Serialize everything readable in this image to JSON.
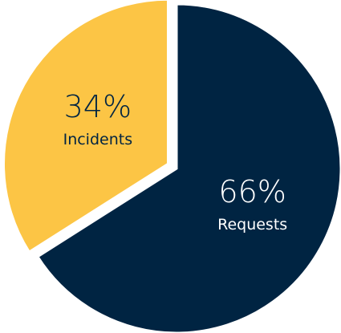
{
  "chart_data": {
    "type": "pie",
    "title": "",
    "slices": [
      {
        "label": "Requests",
        "percent_label": "66%",
        "value": 66,
        "color": "#002442",
        "text_color": "#ffffff",
        "exploded": false
      },
      {
        "label": "Incidents",
        "percent_label": "34%",
        "value": 34,
        "color": "#fcc545",
        "text_color": "#002442",
        "exploded": true
      }
    ],
    "start": "12 o'clock",
    "direction": "clockwise",
    "legend": "none",
    "data_labels": "inside"
  }
}
